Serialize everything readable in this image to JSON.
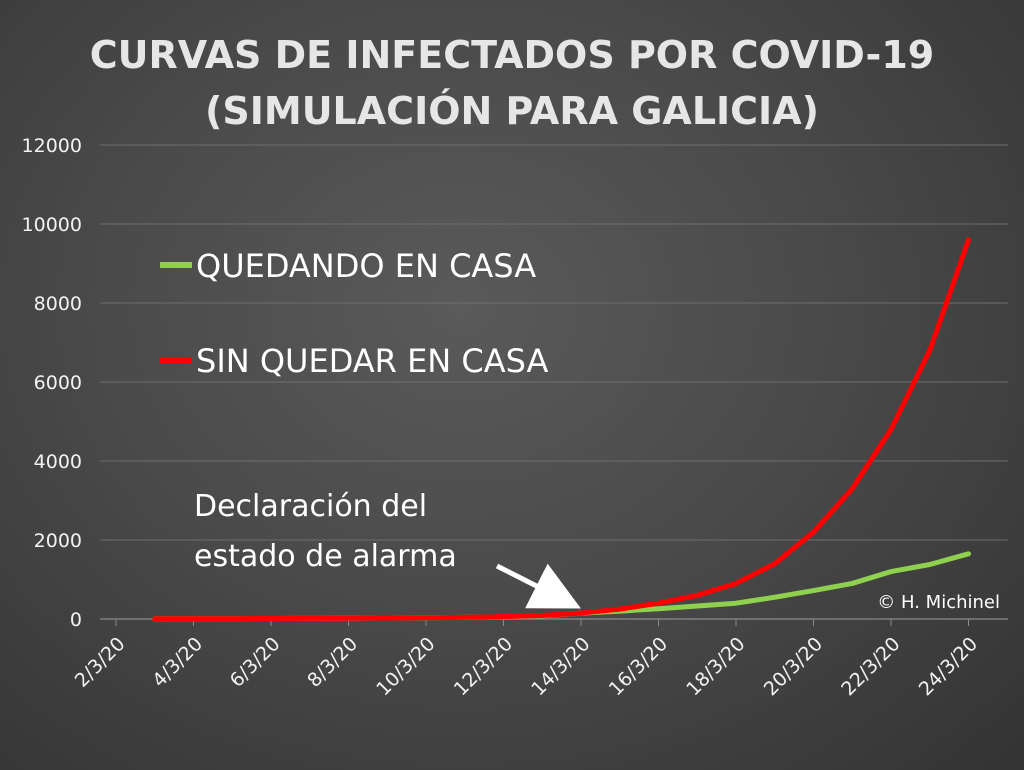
{
  "chart_data": {
    "type": "line",
    "title_lines": [
      "CURVAS DE INFECTADOS POR COVID-19",
      "(SIMULACIÓN PARA GALICIA)"
    ],
    "xlabel": "",
    "ylabel": "",
    "ylim": [
      0,
      12000
    ],
    "yticks": [
      0,
      2000,
      4000,
      6000,
      8000,
      10000,
      12000
    ],
    "x_tick_labels": [
      "2/3/20",
      "4/3/20",
      "6/3/20",
      "8/3/20",
      "10/3/20",
      "12/3/20",
      "14/3/20",
      "16/3/20",
      "18/3/20",
      "20/3/20",
      "22/3/20",
      "24/3/20"
    ],
    "x": [
      "3/3/20",
      "4/3/20",
      "5/3/20",
      "6/3/20",
      "7/3/20",
      "8/3/20",
      "9/3/20",
      "10/3/20",
      "11/3/20",
      "12/3/20",
      "13/3/20",
      "14/3/20",
      "15/3/20",
      "16/3/20",
      "17/3/20",
      "18/3/20",
      "19/3/20",
      "20/3/20",
      "21/3/20",
      "22/3/20",
      "23/3/20",
      "24/3/20"
    ],
    "series": [
      {
        "name": "QUEDANDO EN CASA",
        "color": "#8fd14f",
        "values": [
          5,
          8,
          10,
          12,
          15,
          20,
          25,
          32,
          42,
          55,
          80,
          150,
          200,
          260,
          330,
          400,
          550,
          720,
          900,
          1200,
          1380,
          1650
        ]
      },
      {
        "name": "SIN QUEDAR EN CASA",
        "color": "#ff0000",
        "values": [
          5,
          8,
          10,
          12,
          15,
          20,
          25,
          32,
          42,
          60,
          90,
          150,
          250,
          400,
          600,
          900,
          1400,
          2200,
          3300,
          4800,
          6800,
          9600
        ]
      }
    ],
    "legend_placement": "upper-left",
    "grid": true,
    "annotations": [
      "Declaración del",
      "estado de alarma"
    ],
    "credit": "© H. Michinel"
  }
}
